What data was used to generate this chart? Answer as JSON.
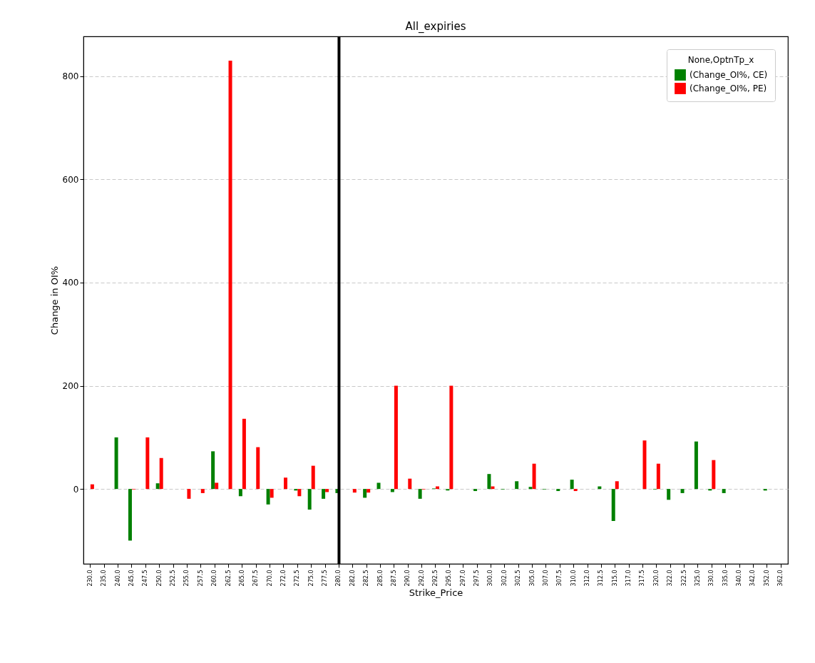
{
  "chart_data": {
    "type": "bar",
    "title": "All_expiries",
    "xlabel": "Strike_Price",
    "ylabel": "Change in OI%",
    "legend_title": "None,OptnTp_x",
    "categories": [
      "230.0",
      "235.0",
      "240.0",
      "245.0",
      "247.5",
      "250.0",
      "252.5",
      "255.0",
      "257.5",
      "260.0",
      "262.5",
      "265.0",
      "267.5",
      "270.0",
      "272.0",
      "272.5",
      "275.0",
      "277.5",
      "280.0",
      "282.0",
      "282.5",
      "285.0",
      "287.5",
      "290.0",
      "292.0",
      "292.5",
      "295.0",
      "297.0",
      "297.5",
      "300.0",
      "302.0",
      "302.5",
      "305.0",
      "307.0",
      "307.5",
      "310.0",
      "312.0",
      "312.5",
      "315.0",
      "317.0",
      "317.5",
      "320.0",
      "322.0",
      "322.5",
      "325.0",
      "330.0",
      "335.0",
      "340.0",
      "342.0",
      "352.0",
      "362.0"
    ],
    "series": [
      {
        "name": "(Change_OI%, CE)",
        "color": "#008000",
        "values": [
          0,
          0,
          100,
          -100,
          0,
          11,
          0,
          0,
          0,
          73,
          0,
          -14,
          0,
          -30,
          0,
          -3,
          -40,
          -19,
          -8,
          0,
          -17,
          12,
          -6,
          0,
          -19,
          1,
          -3,
          0,
          -4,
          29,
          -1,
          15,
          4,
          -1,
          -4,
          18,
          0,
          5,
          -62,
          0,
          0,
          -1,
          -21,
          -8,
          92,
          -3,
          -8,
          0,
          0,
          -3,
          0
        ]
      },
      {
        "name": "(Change_OI%, PE)",
        "color": "#ff0000",
        "values": [
          9,
          0,
          0,
          -1,
          100,
          60,
          0,
          -19,
          -8,
          12,
          830,
          136,
          81,
          -17,
          22,
          -14,
          45,
          -6,
          null,
          -7,
          -7,
          0,
          200,
          20,
          -1,
          5,
          200,
          0,
          0,
          5,
          0,
          0,
          49,
          0,
          0,
          -4,
          0,
          0,
          15,
          0,
          94,
          49,
          0,
          0,
          0,
          56,
          0,
          0,
          0,
          0,
          0
        ]
      }
    ],
    "ylim": [
      -145,
      877
    ],
    "yticks": [
      0,
      200,
      400,
      600,
      800
    ],
    "grid": "y",
    "legend": "top right",
    "ref_lines": [
      {
        "axis": "x",
        "value": "280.0",
        "color": "#000000"
      }
    ]
  }
}
